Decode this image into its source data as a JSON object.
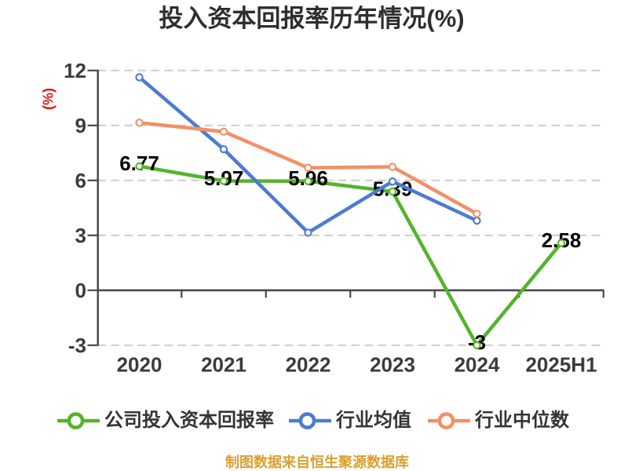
{
  "title": "投入资本回报率历年情况(%)",
  "y_axis": {
    "title": "(%)",
    "title_color": "#e11919",
    "min": -3,
    "max": 12,
    "interval": 3,
    "tick_labels": [
      "12",
      "9",
      "6",
      "3",
      "0",
      "-3"
    ]
  },
  "x_axis": {
    "categories": [
      "2020",
      "2021",
      "2022",
      "2023",
      "2024",
      "2025H1"
    ]
  },
  "chart_data": {
    "type": "line",
    "title": "投入资本回报率历年情况(%)",
    "categories": [
      "2020",
      "2021",
      "2022",
      "2023",
      "2024",
      "2025H1"
    ],
    "series": [
      {
        "name": "公司投入资本回报率",
        "slug": "company-roic",
        "color": "#54b32c",
        "values": [
          6.77,
          5.97,
          5.96,
          5.39,
          -3,
          2.58
        ],
        "point_labels": [
          "6.77",
          "5.97",
          "5.96",
          "5.39",
          "-3",
          "2.58"
        ]
      },
      {
        "name": "行业均值",
        "slug": "industry-mean",
        "color": "#4c7bd2",
        "values": [
          11.63,
          7.7,
          3.15,
          5.94,
          3.8,
          null
        ],
        "point_labels": null
      },
      {
        "name": "行业中位数",
        "slug": "industry-median",
        "color": "#f29066",
        "values": [
          9.15,
          8.66,
          6.69,
          6.74,
          4.18,
          null
        ],
        "point_labels": null
      }
    ],
    "ylim": [
      -3,
      12
    ],
    "y_tick_interval": 3,
    "grid": "horizontal-dashed",
    "legend_position": "bottom"
  },
  "legend": {
    "items": [
      {
        "label": "公司投入资本回报率",
        "color": "#54b32c"
      },
      {
        "label": "行业均值",
        "color": "#4c7bd2"
      },
      {
        "label": "行业中位数",
        "color": "#f29066"
      }
    ]
  },
  "caption": {
    "text": "制图数据来自恒生聚源数据库",
    "color": "#d99f2e"
  },
  "style": {
    "grid_color": "#d0d0d0",
    "axis_color": "#4b4b4b",
    "tick_label_color": "#3b3b3b",
    "value_label_color": "#000000",
    "background": "#ffffff"
  }
}
